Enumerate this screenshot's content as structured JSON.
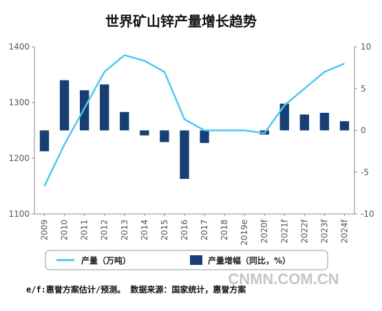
{
  "colors": {
    "line": "#4cc8f0",
    "bar": "#173f73",
    "axis": "#888888",
    "text": "#555555"
  },
  "chart_data": {
    "type": "bar+line",
    "title": "世界矿山锌产量增长趋势",
    "categories": [
      "2009",
      "2010",
      "2011",
      "2012",
      "2013",
      "2014",
      "2015",
      "2016",
      "2017",
      "2018",
      "2019e",
      "2020f",
      "2021f",
      "2022f",
      "2023f",
      "2024f"
    ],
    "y_left": {
      "ylim": [
        1100,
        1400
      ],
      "ticks": [
        1100,
        1200,
        1300,
        1400
      ]
    },
    "y_right": {
      "ylim": [
        -10,
        10
      ],
      "ticks": [
        -10,
        -5,
        0,
        5,
        10
      ]
    },
    "series": [
      {
        "name": "产量（万吨）",
        "type": "line",
        "axis": "left",
        "values": [
          1150,
          1225,
          1290,
          1355,
          1385,
          1375,
          1355,
          1270,
          1250,
          1250,
          1250,
          1245,
          1295,
          1325,
          1355,
          1370
        ]
      },
      {
        "name": "产量增幅（同比，%）",
        "type": "bar",
        "axis": "right",
        "values": [
          -2.5,
          6.0,
          4.8,
          5.5,
          2.2,
          -0.6,
          -1.4,
          -5.8,
          -1.5,
          0,
          0,
          -0.5,
          3.2,
          1.9,
          2.1,
          1.1
        ]
      }
    ],
    "legend": {
      "position": "bottom"
    }
  },
  "footnote": "e/f:惠誉方案估计/预测。  数据来源：国家统计，惠誉方案",
  "watermark": "CNMN.COM.CN"
}
